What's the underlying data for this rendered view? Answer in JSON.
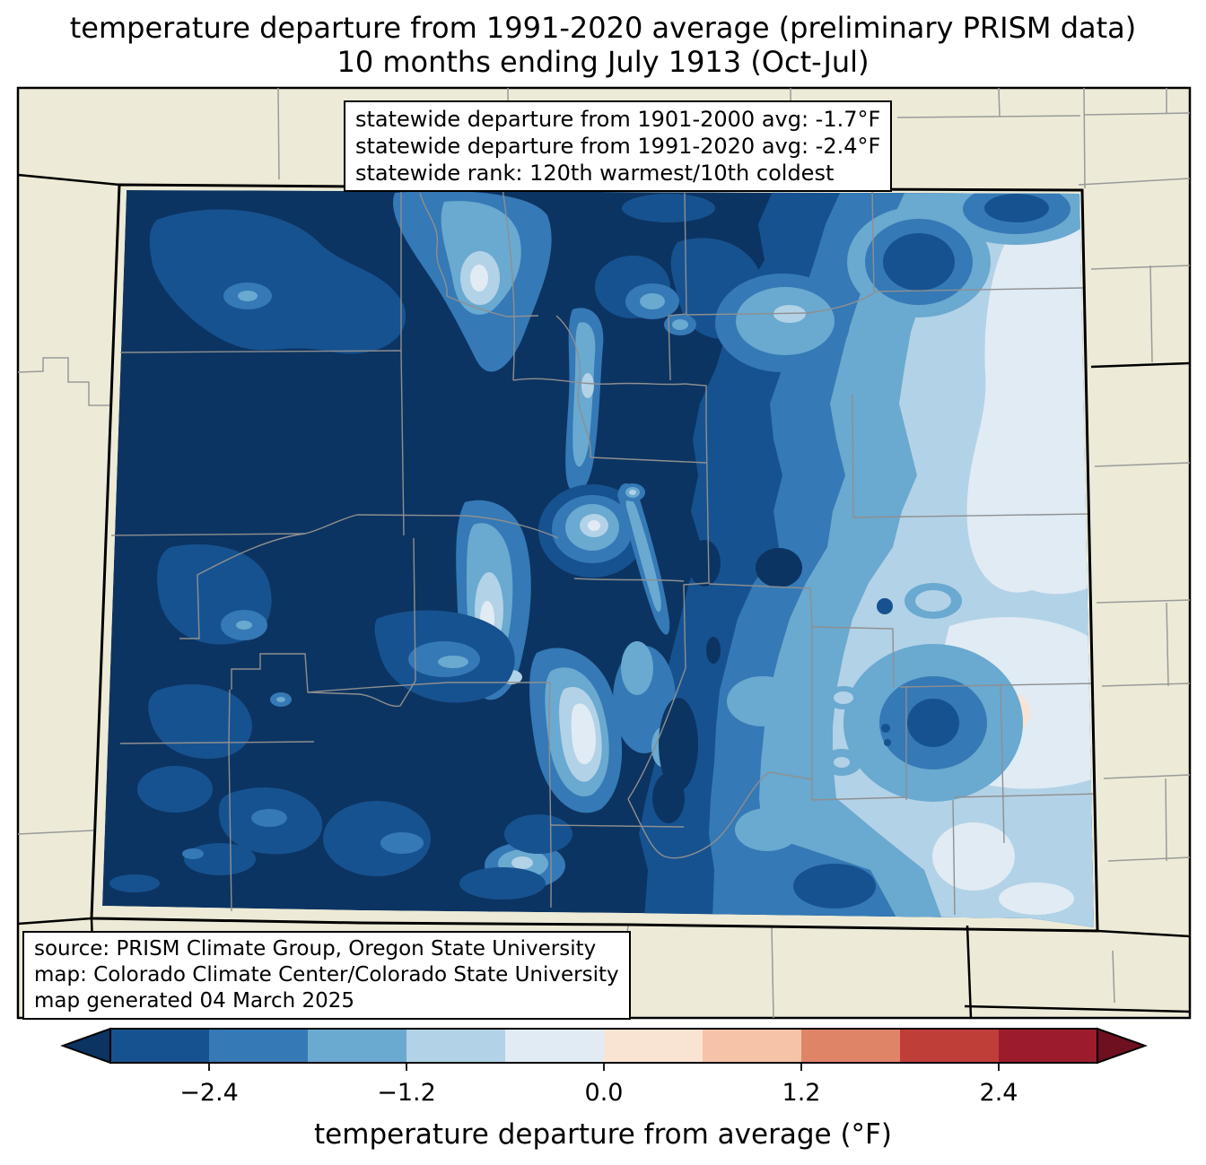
{
  "title": {
    "line1": "temperature departure from 1991-2020 average (preliminary PRISM data)",
    "line2": "10 months ending July 1913 (Oct-Jul)"
  },
  "stats_box": {
    "lines": [
      "statewide departure from 1901-2000 avg: -1.7°F",
      "statewide departure from 1991-2020 avg: -2.4°F",
      "statewide rank: 120th warmest/10th coldest"
    ]
  },
  "source_box": {
    "lines": [
      "source: PRISM Climate Group, Oregon State University",
      "map: Colorado Climate Center/Colorado State University",
      "map generated 04 March 2025"
    ]
  },
  "map": {
    "region_label": "Colorado",
    "background_color": "#edebd7",
    "county_line_color": "#8f8f8f",
    "neighbor_line_color": "#9a9a9a",
    "state_border_color": "#000000"
  },
  "colorbar": {
    "label": "temperature departure from average (°F)",
    "ticks": [
      "−2.4",
      "−1.2",
      "0.0",
      "1.2",
      "2.4"
    ],
    "tick_values": [
      -2.4,
      -1.2,
      0.0,
      1.2,
      2.4
    ],
    "range": [
      -3.0,
      3.0
    ],
    "boundaries": [
      -3.0,
      -2.4,
      -1.8,
      -1.2,
      -0.6,
      0.0,
      0.6,
      1.2,
      1.8,
      2.4,
      3.0
    ],
    "segment_colors": [
      "#175290",
      "#3579b6",
      "#6aa9d0",
      "#b2d2e7",
      "#e0ebf4",
      "#f9e4d4",
      "#f7c3a7",
      "#e08468",
      "#c03e38",
      "#9d1c2c"
    ],
    "under_color": "#0c3462",
    "over_color": "#6f1020"
  }
}
